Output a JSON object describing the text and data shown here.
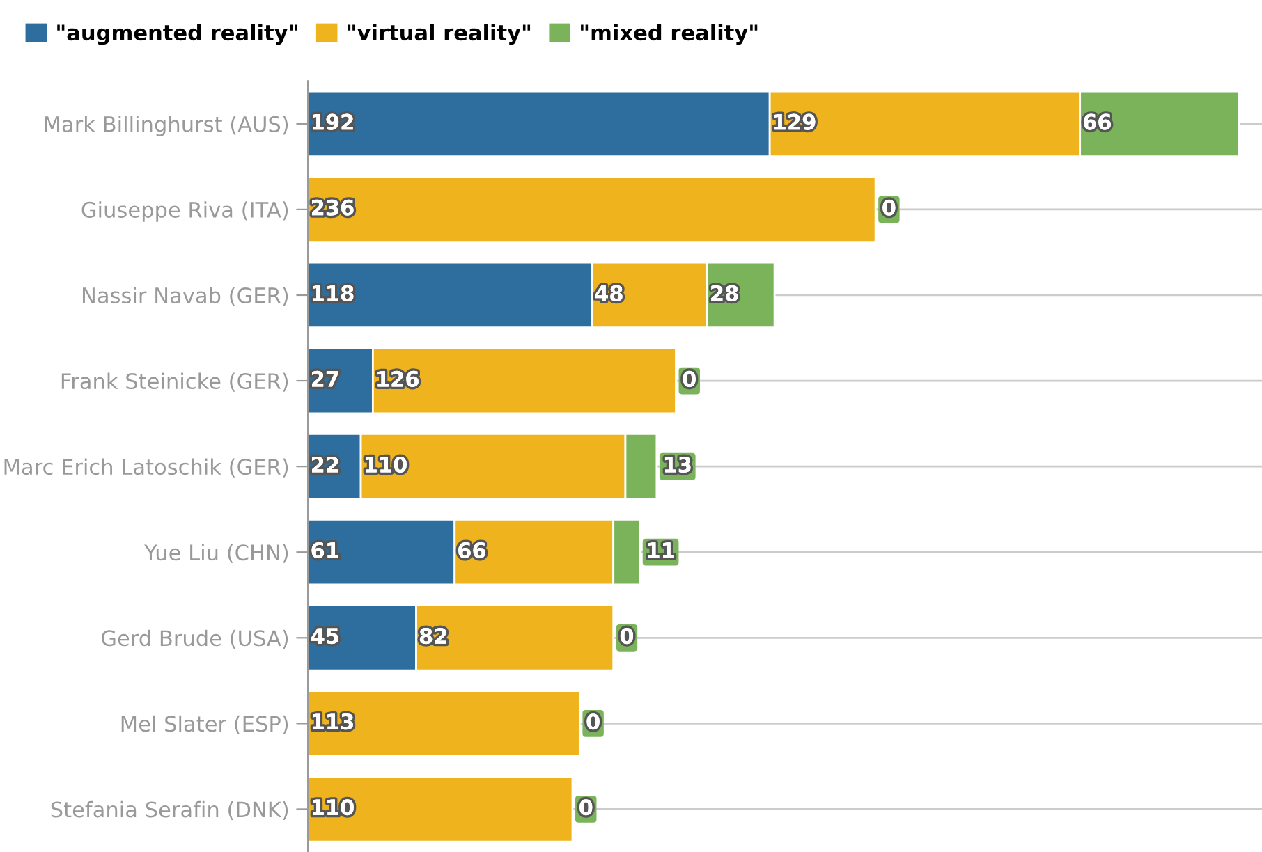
{
  "chart_data": {
    "type": "bar",
    "orientation": "horizontal",
    "stacked": true,
    "grid": "y",
    "legend": "top left",
    "categories": [
      "Mark Billinghurst (AUS)",
      "Giuseppe Riva (ITA)",
      "Nassir Navab (GER)",
      "Frank Steinicke (GER)",
      "Marc Erich Latoschik (GER)",
      "Yue Liu (CHN)",
      "Gerd Brude (USA)",
      "Mel Slater (ESP)",
      "Stefania Serafin (DNK)"
    ],
    "series": [
      {
        "name": "\"augmented reality\"",
        "color": "#2e6e9e",
        "values": [
          192,
          0,
          118,
          27,
          22,
          61,
          45,
          0,
          0
        ],
        "value_labels": [
          "192",
          null,
          "118",
          "27",
          "22",
          "61",
          "45",
          null,
          null
        ]
      },
      {
        "name": "\"virtual reality\"",
        "color": "#efb41d",
        "values": [
          129,
          236,
          48,
          126,
          110,
          66,
          82,
          113,
          110
        ],
        "value_labels": [
          "129",
          "236",
          "48",
          "126",
          "110",
          "66",
          "82",
          "113",
          "110"
        ]
      },
      {
        "name": "\"mixed reality\"",
        "color": "#7bb35a",
        "values": [
          66,
          0,
          28,
          0,
          13,
          11,
          0,
          0,
          0
        ],
        "value_labels": [
          "66",
          "0",
          "28",
          "0",
          "13",
          "11",
          "0",
          "0",
          "0"
        ]
      }
    ]
  }
}
